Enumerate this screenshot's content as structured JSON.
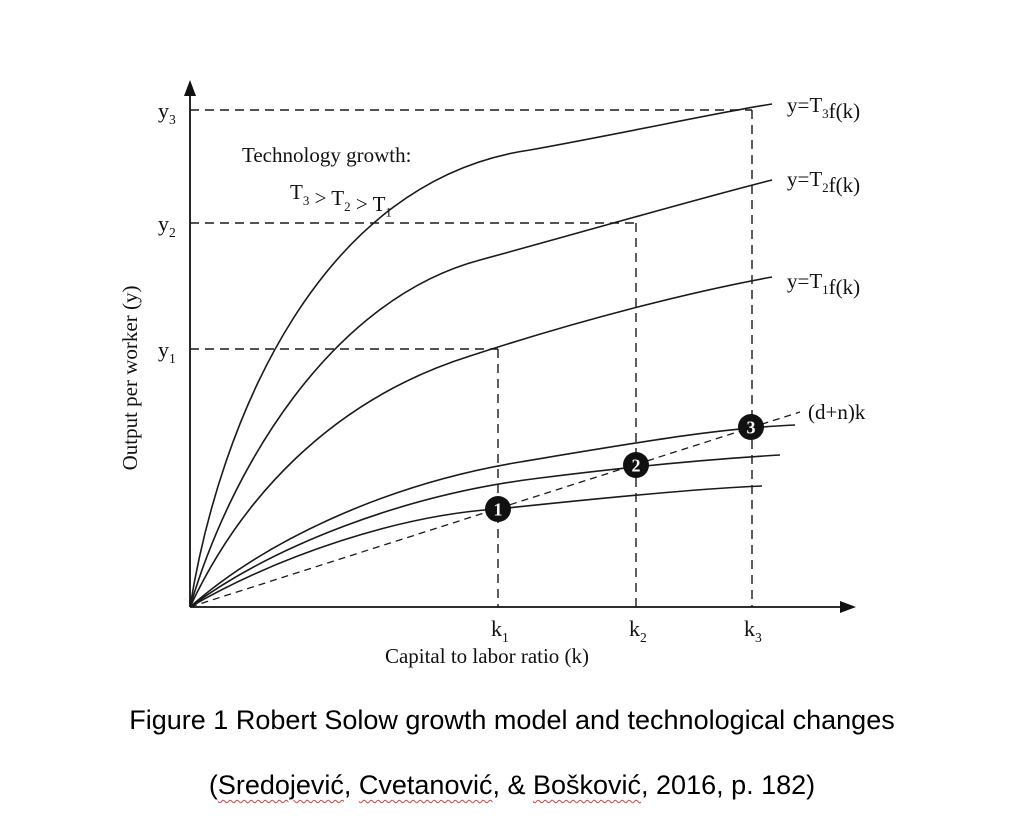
{
  "diagram": {
    "y_axis_label": "Output per worker (y)",
    "x_axis_label": "Capital to labor ratio (k)",
    "y_ticks": [
      {
        "base": "y",
        "sub": "3"
      },
      {
        "base": "y",
        "sub": "2"
      },
      {
        "base": "y",
        "sub": "1"
      }
    ],
    "x_ticks": [
      {
        "base": "k",
        "sub": "1"
      },
      {
        "base": "k",
        "sub": "2"
      },
      {
        "base": "k",
        "sub": "3"
      }
    ],
    "annotation": {
      "line1": "Technology growth:",
      "line2": [
        {
          "base": "T",
          "sub": "3"
        },
        {
          "base": " > T",
          "sub": "2"
        },
        {
          "base": " > T",
          "sub": "1"
        }
      ]
    },
    "production_curves": [
      {
        "label": [
          {
            "base": "y=T",
            "sub": "3"
          },
          {
            "base": "f(k)",
            "sub": ""
          }
        ]
      },
      {
        "label": [
          {
            "base": "y=T",
            "sub": "2"
          },
          {
            "base": "f(k)",
            "sub": ""
          }
        ]
      },
      {
        "label": [
          {
            "base": "y=T",
            "sub": "1"
          },
          {
            "base": "f(k)",
            "sub": ""
          }
        ]
      }
    ],
    "break_even_label": "(d+n)k",
    "equilibria": [
      "1",
      "2",
      "3"
    ]
  },
  "caption": {
    "title": "Figure 1 Robert Solow growth model and technological changes",
    "citation": {
      "open": "(",
      "author1": "Sredojević",
      "sep1": ", ",
      "author2": "Cvetanović",
      "sep2": ", & ",
      "author3": "Bošković",
      "rest": ", 2016, p. 182)"
    }
  }
}
